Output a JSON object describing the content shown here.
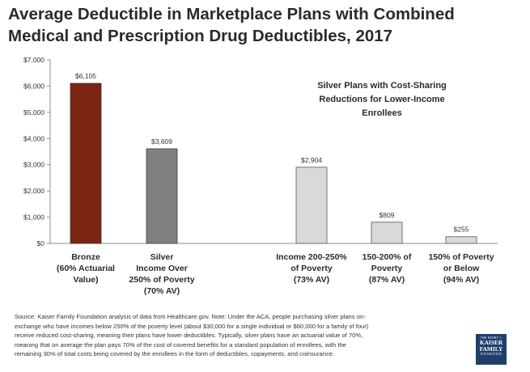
{
  "title_lines": [
    "Average Deductible in Marketplace Plans with Combined",
    "Medical and Prescription Drug Deductibles, 2017"
  ],
  "chart_data": {
    "type": "bar",
    "title": "Average Deductible in Marketplace Plans with Combined Medical and Prescription Drug Deductibles, 2017",
    "xlabel": "",
    "ylabel": "",
    "ylim": [
      0,
      7000
    ],
    "y_ticks": [
      0,
      1000,
      2000,
      3000,
      4000,
      5000,
      6000,
      7000
    ],
    "y_tick_labels": [
      "$0",
      "$1,000",
      "$2,000",
      "$3,000",
      "$4,000",
      "$5,000",
      "$6,000",
      "$7,000"
    ],
    "categories": [
      [
        "Bronze",
        "(60% Actuarial",
        "Value)"
      ],
      [
        "Silver",
        "Income Over",
        "250% of Poverty",
        "(70% AV)"
      ],
      [
        "Income 200-250%",
        "of Poverty",
        "(73% AV)"
      ],
      [
        "150-200% of",
        "Poverty",
        "(87% AV)"
      ],
      [
        "150% of Poverty",
        "or Below",
        "(94% AV)"
      ]
    ],
    "values": [
      6105,
      3609,
      2904,
      809,
      255
    ],
    "data_labels": [
      "$6,105",
      "$3,609",
      "$2,904",
      "$809",
      "$255"
    ],
    "bar_colors": [
      "#7b2512",
      "#808080",
      "#d9d9d9",
      "#d9d9d9",
      "#d9d9d9"
    ],
    "annotation": [
      "Silver Plans with Cost-Sharing",
      "Reductions for Lower-Income",
      "Enrollees"
    ]
  },
  "source_lines": [
    "Source: Kaiser Family Foundation analysis of data from Healthcare.gov. Note: Under the ACA, people purchasing silver plans on-",
    "exchange who have incomes below 250% of the poverty level (about $30,000 for a single individual or $60,000 for a family of four)",
    "receive reduced cost-sharing, meaning their plans have lower deductibles. Typically, silver plans have an actuarial value of 70%,",
    "meaning that on average the plan pays 70% of the cost of covered benefits for a standard population of enrollees, with the",
    "remaining 30% of total costs being covered by the enrollees in the form of deductibles, copayments, and coinsurance."
  ],
  "logo": {
    "top": "THE HENRY J.",
    "line1": "KAISER",
    "line2": "FAMILY",
    "bottom": "FOUNDATION"
  }
}
